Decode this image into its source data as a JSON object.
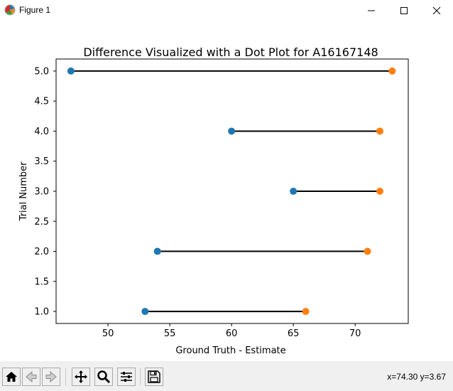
{
  "window": {
    "title": "Figure 1"
  },
  "toolbar": {
    "buttons": [
      {
        "name": "home-icon",
        "tooltip": "Home"
      },
      {
        "name": "back-icon",
        "tooltip": "Back"
      },
      {
        "name": "forward-icon",
        "tooltip": "Forward"
      },
      {
        "name": "pan-icon",
        "tooltip": "Pan"
      },
      {
        "name": "zoom-icon",
        "tooltip": "Zoom"
      },
      {
        "name": "configure-subplots-icon",
        "tooltip": "Subplots"
      },
      {
        "name": "save-icon",
        "tooltip": "Save"
      }
    ],
    "coordinates": "x=74.30 y=3.67"
  },
  "chart_data": {
    "type": "scatter",
    "title": "Difference Visualized with a Dot Plot for A16167148",
    "xlabel": "Ground Truth - Estimate",
    "ylabel": "Trial Number",
    "xlim": [
      45.8,
      74.3
    ],
    "ylim": [
      0.8,
      5.2
    ],
    "xticks": [
      50,
      55,
      60,
      65,
      70
    ],
    "xtick_labels": [
      "50",
      "55",
      "60",
      "65",
      "70"
    ],
    "yticks": [
      1,
      1.5,
      2,
      2.5,
      3,
      3.5,
      4,
      4.5,
      5
    ],
    "ytick_labels": [
      "1.0",
      "1.5",
      "2.0",
      "2.5",
      "3.0",
      "3.5",
      "4.0",
      "4.5",
      "5.0"
    ],
    "grid": false,
    "series": [
      {
        "color": "#1f77b4",
        "points": [
          {
            "x": 53,
            "y": 1
          },
          {
            "x": 54,
            "y": 2
          },
          {
            "x": 65,
            "y": 3
          },
          {
            "x": 60,
            "y": 4
          },
          {
            "x": 47,
            "y": 5
          }
        ]
      },
      {
        "color": "#ff7f0e",
        "points": [
          {
            "x": 66,
            "y": 1
          },
          {
            "x": 71,
            "y": 2
          },
          {
            "x": 72,
            "y": 3
          },
          {
            "x": 72,
            "y": 4
          },
          {
            "x": 73,
            "y": 5
          }
        ]
      }
    ],
    "connector_color": "#000000"
  }
}
